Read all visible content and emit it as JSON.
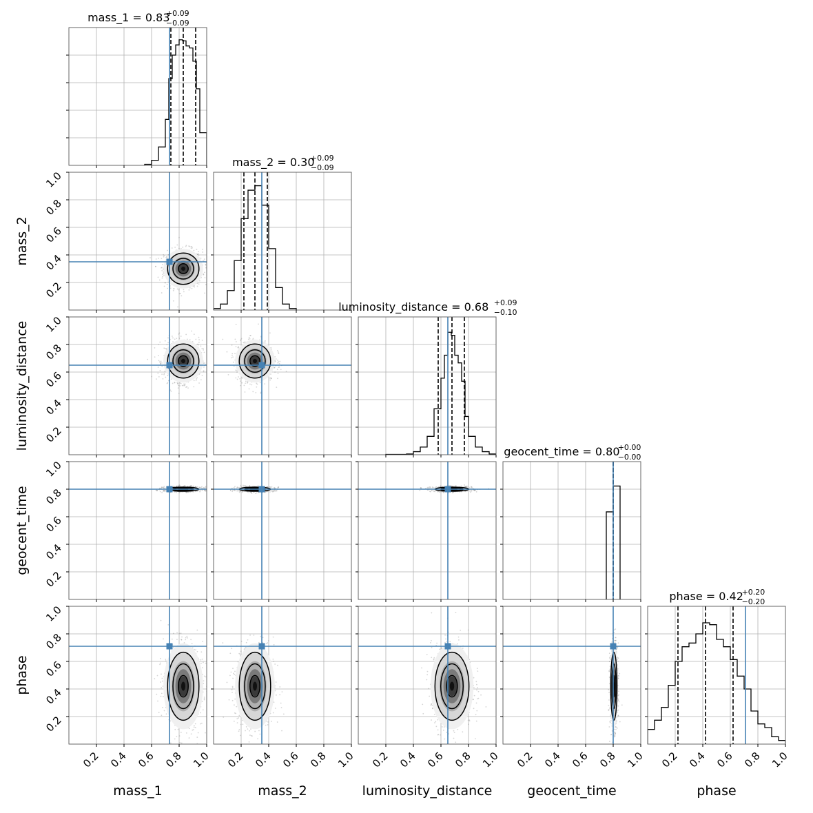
{
  "chart_data": {
    "type": "corner",
    "parameters": [
      "mass_1",
      "mass_2",
      "luminosity_distance",
      "geocent_time",
      "phase"
    ],
    "axis_range": [
      0,
      1
    ],
    "tick_values": [
      0.2,
      0.4,
      0.6,
      0.8,
      1.0
    ],
    "tick_labels": [
      "0.2",
      "0.4",
      "0.6",
      "0.8",
      "1.0"
    ],
    "grid": true,
    "colors": {
      "truth": "#4682b4",
      "hist": "#000000",
      "contour": "#000000",
      "grid": "#b0b0b0"
    },
    "truths": {
      "mass_1": 0.73,
      "mass_2": 0.35,
      "luminosity_distance": 0.65,
      "geocent_time": 0.8,
      "phase": 0.71
    },
    "marginals": [
      {
        "param": "mass_1",
        "title": "mass_1 = 0.83",
        "plus": "+0.09",
        "minus": "−0.09",
        "quantiles": [
          0.74,
          0.83,
          0.92
        ],
        "bin_edges": [
          0.55,
          0.6,
          0.65,
          0.7,
          0.725,
          0.75,
          0.775,
          0.8,
          0.825,
          0.85,
          0.875,
          0.9,
          0.925,
          0.95,
          1.0
        ],
        "counts": [
          0.01,
          0.05,
          0.18,
          0.45,
          0.85,
          1.08,
          1.18,
          1.23,
          1.22,
          1.17,
          1.15,
          1.02,
          0.75,
          0.32
        ],
        "ymax": 1.35
      },
      {
        "param": "mass_2",
        "title": "mass_2 = 0.30",
        "plus": "+0.09",
        "minus": "−0.09",
        "quantiles": [
          0.22,
          0.3,
          0.39
        ],
        "bin_edges": [
          0.0,
          0.05,
          0.1,
          0.15,
          0.2,
          0.25,
          0.3,
          0.35,
          0.4,
          0.45,
          0.5,
          0.55,
          0.6
        ],
        "counts": [
          0.01,
          0.04,
          0.13,
          0.33,
          0.61,
          0.8,
          0.83,
          0.7,
          0.41,
          0.15,
          0.04,
          0.01
        ],
        "ymax": 0.92
      },
      {
        "param": "luminosity_distance",
        "title": "luminosity_distance = 0.68",
        "plus": "+0.09",
        "minus": "−0.10",
        "quantiles": [
          0.58,
          0.68,
          0.77
        ],
        "bin_edges": [
          0.2,
          0.35,
          0.4,
          0.45,
          0.5,
          0.55,
          0.6,
          0.625,
          0.65,
          0.675,
          0.7,
          0.725,
          0.75,
          0.775,
          0.8,
          0.85,
          0.9,
          0.95,
          1.0
        ],
        "counts": [
          0.002,
          0.005,
          0.02,
          0.05,
          0.12,
          0.3,
          0.5,
          0.65,
          0.8,
          0.78,
          0.65,
          0.6,
          0.48,
          0.25,
          0.12,
          0.05,
          0.02,
          0.005
        ],
        "ymax": 0.9
      },
      {
        "param": "geocent_time",
        "title": "geocent_time = 0.80",
        "plus": "+0.00",
        "minus": "−0.00",
        "quantiles": [
          0.8,
          0.8,
          0.8
        ],
        "bin_edges": [
          0.75,
          0.8,
          0.85
        ],
        "counts": [
          0.61,
          0.79
        ],
        "ymax": 0.96
      },
      {
        "param": "phase",
        "title": "phase = 0.42",
        "plus": "+0.20",
        "minus": "−0.20",
        "quantiles": [
          0.22,
          0.42,
          0.62
        ],
        "bin_edges": [
          0.0,
          0.05,
          0.1,
          0.15,
          0.2,
          0.25,
          0.3,
          0.35,
          0.4,
          0.45,
          0.5,
          0.55,
          0.6,
          0.65,
          0.7,
          0.75,
          0.8,
          0.85,
          0.9,
          0.95,
          1.0
        ],
        "counts": [
          0.08,
          0.13,
          0.2,
          0.32,
          0.45,
          0.53,
          0.55,
          0.6,
          0.66,
          0.65,
          0.57,
          0.53,
          0.46,
          0.37,
          0.3,
          0.18,
          0.11,
          0.09,
          0.04,
          0.02
        ],
        "ymax": 0.75
      }
    ],
    "pairs": [
      {
        "x": "mass_1",
        "y": "mass_2",
        "mean": [
          0.83,
          0.3
        ],
        "sd": [
          0.06,
          0.06
        ]
      },
      {
        "x": "mass_1",
        "y": "luminosity_distance",
        "mean": [
          0.83,
          0.68
        ],
        "sd": [
          0.06,
          0.065
        ]
      },
      {
        "x": "mass_2",
        "y": "luminosity_distance",
        "mean": [
          0.3,
          0.68
        ],
        "sd": [
          0.06,
          0.065
        ]
      },
      {
        "x": "mass_1",
        "y": "geocent_time",
        "mean": [
          0.83,
          0.8
        ],
        "sd": [
          0.06,
          0.008
        ]
      },
      {
        "x": "mass_2",
        "y": "geocent_time",
        "mean": [
          0.3,
          0.8
        ],
        "sd": [
          0.06,
          0.008
        ]
      },
      {
        "x": "luminosity_distance",
        "y": "geocent_time",
        "mean": [
          0.68,
          0.8
        ],
        "sd": [
          0.065,
          0.008
        ]
      },
      {
        "x": "mass_1",
        "y": "phase",
        "mean": [
          0.83,
          0.42
        ],
        "sd": [
          0.06,
          0.13
        ]
      },
      {
        "x": "mass_2",
        "y": "phase",
        "mean": [
          0.3,
          0.42
        ],
        "sd": [
          0.06,
          0.13
        ]
      },
      {
        "x": "luminosity_distance",
        "y": "phase",
        "mean": [
          0.68,
          0.42
        ],
        "sd": [
          0.065,
          0.13
        ]
      },
      {
        "x": "geocent_time",
        "y": "phase",
        "mean": [
          0.805,
          0.42
        ],
        "sd": [
          0.012,
          0.13
        ]
      }
    ],
    "xlabels": [
      "mass_1",
      "mass_2",
      "luminosity_distance",
      "geocent_time",
      "phase"
    ],
    "ylabels": [
      "mass_2",
      "luminosity_distance",
      "geocent_time",
      "phase"
    ]
  }
}
